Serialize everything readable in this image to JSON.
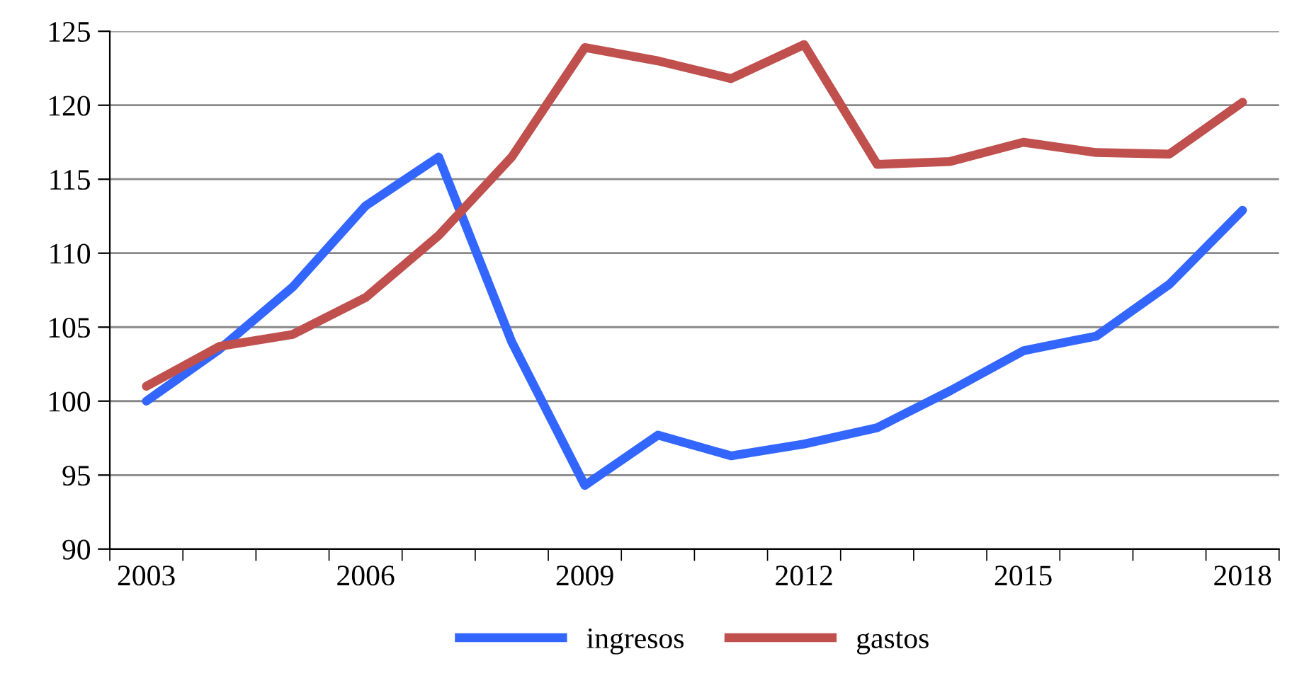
{
  "chart_data": {
    "type": "line",
    "categories": [
      "2003",
      null,
      null,
      "2006",
      null,
      null,
      "2009",
      null,
      null,
      "2012",
      null,
      null,
      "2015",
      null,
      null,
      "2018"
    ],
    "series": [
      {
        "name": "ingresos",
        "color": "#3366ff",
        "values": [
          100.0,
          103.5,
          107.7,
          113.2,
          116.5,
          104.0,
          94.3,
          97.7,
          96.3,
          97.1,
          98.2,
          100.7,
          103.4,
          104.4,
          107.9,
          112.9
        ]
      },
      {
        "name": "gastos",
        "color": "#c0504d",
        "values": [
          101.0,
          103.7,
          104.5,
          107.0,
          111.2,
          116.5,
          123.9,
          123.0,
          121.8,
          124.1,
          116.0,
          116.2,
          117.5,
          116.8,
          116.7,
          120.2
        ]
      }
    ],
    "ylim": [
      90,
      125
    ],
    "yticks": [
      90,
      95,
      100,
      105,
      110,
      115,
      120,
      125
    ],
    "grid": "y",
    "legend": "bottom",
    "marker": "none",
    "line_style": "solid"
  }
}
